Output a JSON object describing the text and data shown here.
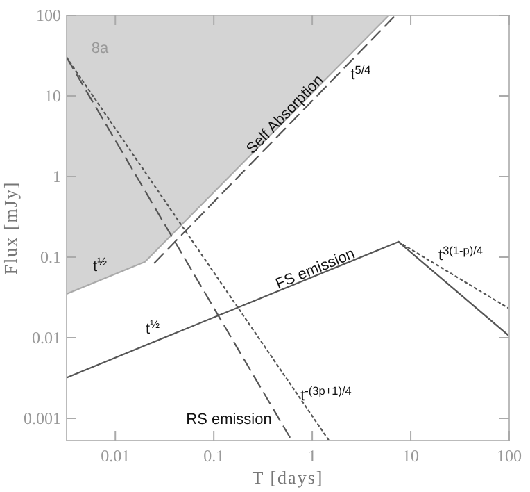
{
  "chart_data": {
    "type": "line",
    "xlabel": "T [days]",
    "ylabel": "Flux [mJy]",
    "log": "xy",
    "grid": false,
    "marker": "none",
    "xlim": [
      0.0032,
      100
    ],
    "xticks": [
      0.01,
      0.1,
      1,
      10,
      100
    ],
    "ylim": [
      0.00053,
      100
    ],
    "yticks": [
      0.001,
      0.01,
      0.1,
      1,
      10,
      100
    ],
    "series": [
      {
        "type": "line",
        "color": "#aaaaaa",
        "line_style": "solid",
        "x": [
          0.0032,
          0.02,
          6
        ],
        "values": [
          0.035,
          0.0875,
          100
        ],
        "lower": [
          0.035,
          0.0875,
          100
        ],
        "upper": [
          100,
          100,
          100
        ]
      },
      {
        "type": "line",
        "color": "#555555",
        "line_style": "solid",
        "x": [
          0.0032,
          7.5,
          100
        ],
        "values": [
          0.0032,
          0.155,
          0.0105
        ]
      },
      {
        "type": "line",
        "color": "#555555",
        "line_style": "dotted",
        "x": [
          7.5,
          100
        ],
        "values": [
          0.155,
          0.023
        ]
      },
      {
        "type": "line",
        "color": "#555555",
        "line_style": "dashed",
        "x": [
          0.0032,
          0.62
        ],
        "values": [
          30,
          0.00053
        ]
      },
      {
        "type": "line",
        "color": "#555555",
        "line_style": "dotted",
        "x": [
          0.0032,
          1.48
        ],
        "values": [
          30,
          0.00053
        ]
      },
      {
        "type": "line",
        "color": "#555555",
        "line_style": "dashed",
        "x": [
          0.025,
          7
        ],
        "values": [
          0.085,
          100
        ]
      }
    ],
    "annotations": [
      "8a",
      "Self Absorption",
      "t$^{5/4}$",
      "t$^{½}$",
      "t$^{½}$",
      "FS emission",
      "t$^{3(1-p)/4}$",
      "RS emission",
      "t$^{-(3p+1)/4}$"
    ]
  }
}
